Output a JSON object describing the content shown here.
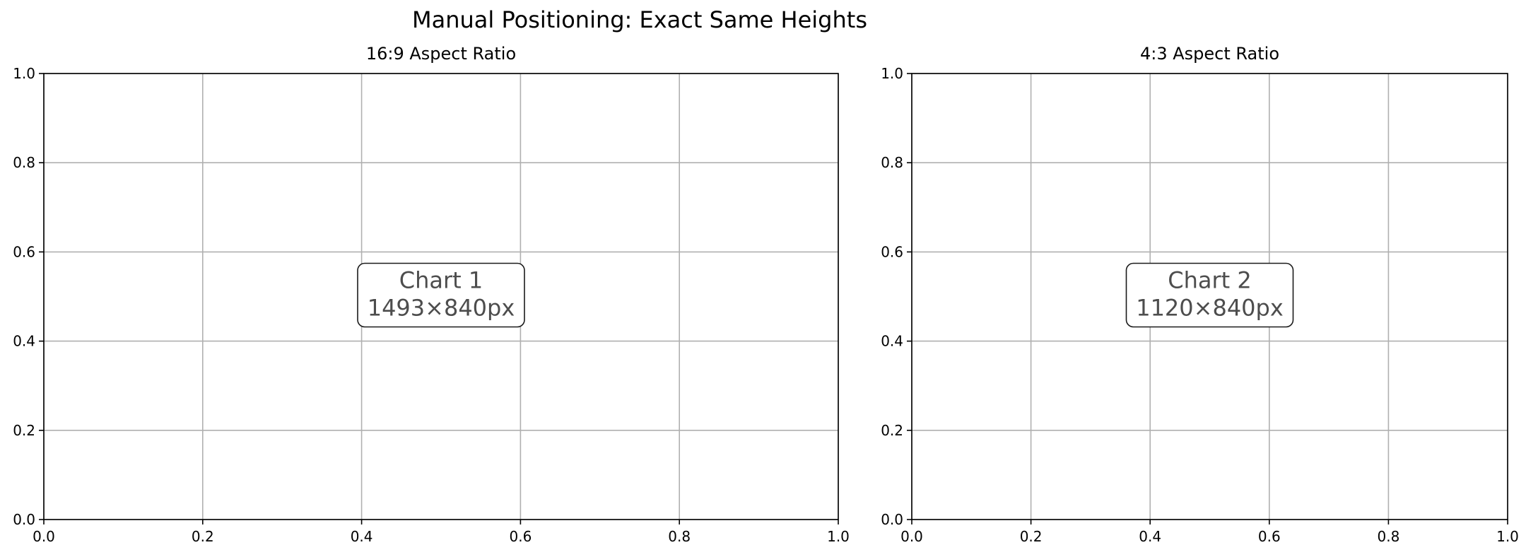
{
  "figure": {
    "suptitle": "Manual Positioning: Exact Same Heights"
  },
  "chart_data": [
    {
      "type": "line",
      "title": "16:9 Aspect Ratio",
      "xlabel": "",
      "ylabel": "",
      "xlim": [
        0,
        1
      ],
      "ylim": [
        0,
        1
      ],
      "xticks": [
        "0.0",
        "0.2",
        "0.4",
        "0.6",
        "0.8",
        "1.0"
      ],
      "yticks": [
        "0.0",
        "0.2",
        "0.4",
        "0.6",
        "0.8",
        "1.0"
      ],
      "grid": true,
      "series": [],
      "annotation": {
        "x": 0.5,
        "y": 0.5,
        "lines": [
          "Chart 1",
          "1493×840px"
        ]
      }
    },
    {
      "type": "line",
      "title": "4:3 Aspect Ratio",
      "xlabel": "",
      "ylabel": "",
      "xlim": [
        0,
        1
      ],
      "ylim": [
        0,
        1
      ],
      "xticks": [
        "0.0",
        "0.2",
        "0.4",
        "0.6",
        "0.8",
        "1.0"
      ],
      "yticks": [
        "0.0",
        "0.2",
        "0.4",
        "0.6",
        "0.8",
        "1.0"
      ],
      "grid": true,
      "series": [],
      "annotation": {
        "x": 0.5,
        "y": 0.5,
        "lines": [
          "Chart 2",
          "1120×840px"
        ]
      }
    }
  ],
  "colors": {
    "axis": "#000000",
    "grid": "#b0b0b0",
    "annotation_text": "#4d4d4d",
    "annotation_border": "#1a1a1a",
    "background": "#ffffff"
  }
}
